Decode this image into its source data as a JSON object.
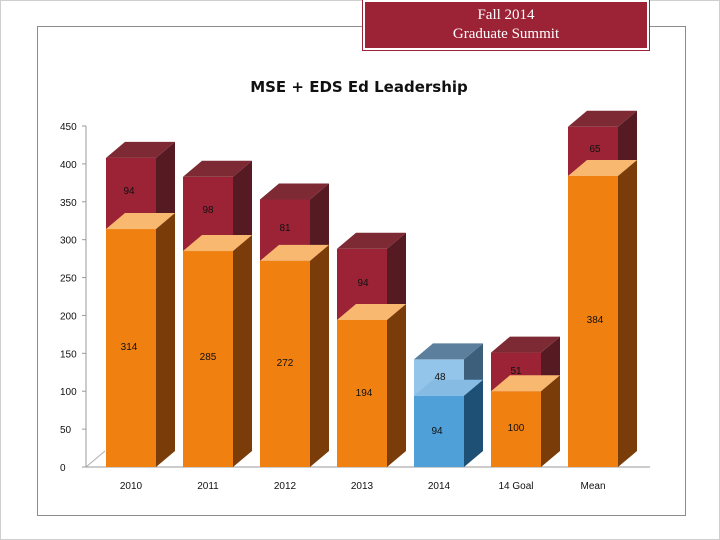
{
  "header": {
    "line1": "Fall 2014",
    "line2": "Graduate Summit"
  },
  "chart_data": {
    "type": "bar",
    "stacked": true,
    "title": "MSE + EDS Ed Leadership",
    "categories": [
      "2010",
      "2011",
      "2012",
      "2013",
      "2014",
      "14 Goal",
      "Mean"
    ],
    "ylim": [
      0,
      450
    ],
    "yticks": [
      0,
      50,
      100,
      150,
      200,
      250,
      300,
      350,
      400,
      450
    ],
    "series": [
      {
        "name": "bottom",
        "values": [
          314,
          285,
          272,
          194,
          94,
          100,
          384
        ]
      },
      {
        "name": "top",
        "values": [
          94,
          98,
          81,
          94,
          48,
          51,
          65
        ]
      }
    ],
    "colors": {
      "bottom_front": "#f08010",
      "bottom_side": "#7a3c08",
      "bottom_top": "#f9b870",
      "top_front": "#9b2335",
      "top_side": "#561a22",
      "top_top": "#7e2a34",
      "blue_front": "#4f9fd8",
      "blue_side": "#1e4f74",
      "blue_top": "#86bce3",
      "lightblue_front": "#93c4ea",
      "lightblue_side": "#3d5f7c",
      "lightblue_top": "#5b7f9c"
    },
    "blue_category": "2014"
  }
}
